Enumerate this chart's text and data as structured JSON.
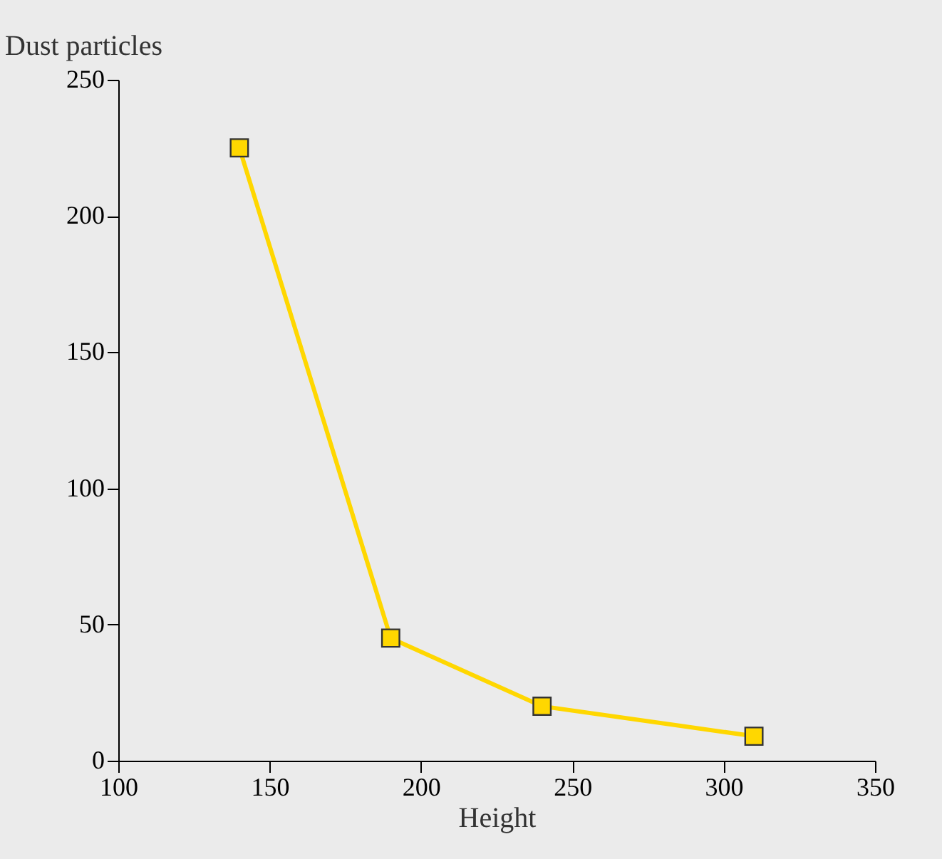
{
  "chart_data": {
    "type": "line",
    "xlabel": "Height",
    "ylabel": "Dust particles",
    "x": [
      140,
      190,
      240,
      310
    ],
    "series": [
      {
        "color": "#ffd700",
        "values": [
          225,
          45,
          20,
          9
        ]
      }
    ],
    "xlim": [
      100,
      350
    ],
    "xticks": [
      100,
      150,
      200,
      250,
      300,
      350
    ],
    "ylim": [
      0,
      250
    ],
    "yticks": [
      0,
      50,
      100,
      150,
      200,
      250
    ],
    "grid": false,
    "legend": false,
    "marker": "square",
    "line_style": "solid"
  }
}
